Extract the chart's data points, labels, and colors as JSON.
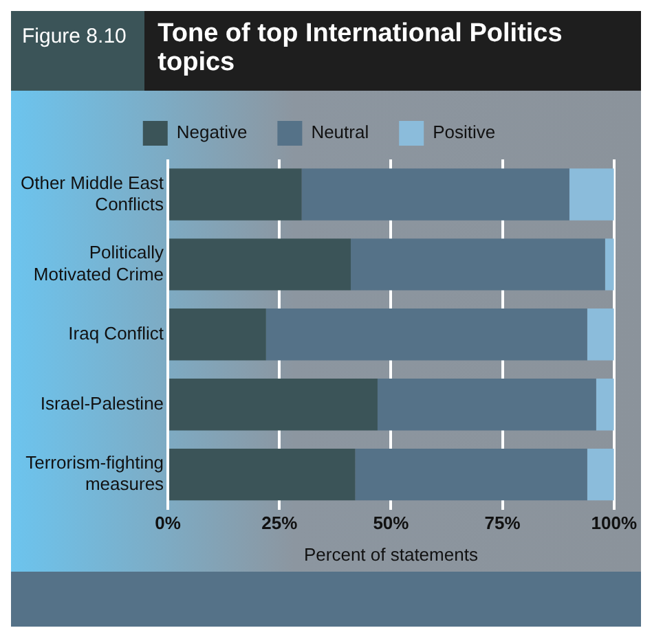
{
  "chart_data": {
    "type": "bar",
    "orientation": "horizontal",
    "stacked": true,
    "title": "Tone of top International Politics topics",
    "annotations": [
      "Figure 8.10"
    ],
    "xlabel": "Percent of statements",
    "categories": [
      "Other Middle East Conflicts",
      "Politically Motivated Crime",
      "Iraq Conflict",
      "Israel-Palestine",
      "Terrorism-fighting measures"
    ],
    "series": [
      {
        "name": "Negative",
        "color": "#3b5458",
        "values": [
          30,
          41,
          22,
          47,
          42
        ]
      },
      {
        "name": "Neutral",
        "color": "#557288",
        "values": [
          60,
          57,
          72,
          49,
          52
        ]
      },
      {
        "name": "Positive",
        "color": "#8bbcdb",
        "values": [
          10,
          2,
          6,
          4,
          6
        ]
      }
    ],
    "xlim": [
      0,
      100
    ],
    "xticks": [
      {
        "value": 0,
        "label": "0%"
      },
      {
        "value": 25,
        "label": "25%"
      },
      {
        "value": 50,
        "label": "50%"
      },
      {
        "value": 75,
        "label": "75%"
      },
      {
        "value": 100,
        "label": "100%"
      }
    ],
    "grid": "x",
    "legend": "top"
  }
}
